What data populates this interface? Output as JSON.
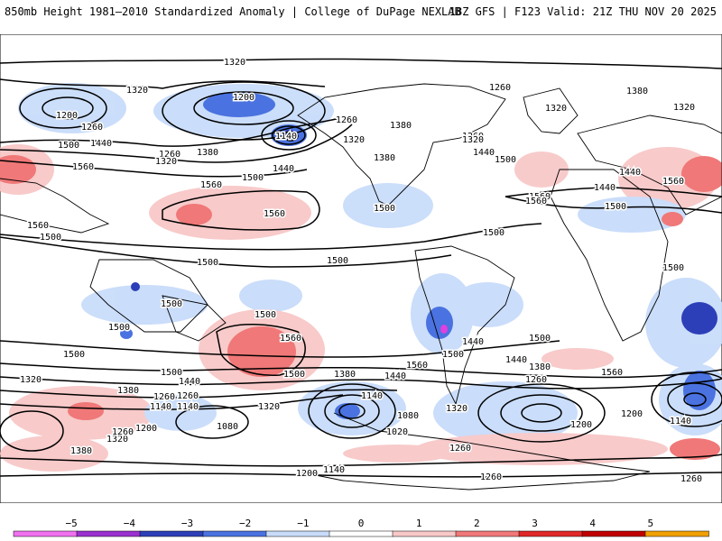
{
  "header": {
    "title_left": "850mb Height 1981–2010 Standardized Anomaly | College of DuPage NEXLAB",
    "title_right": "18Z GFS | F123 Valid: 21Z THU NOV 20 2025"
  },
  "map": {
    "contour_labels": [
      "1320",
      "1320",
      "1260",
      "1200",
      "1200",
      "1260",
      "1140",
      "1380",
      "1320",
      "1260",
      "1260",
      "1380",
      "1320",
      "1260",
      "1380",
      "1320",
      "1500",
      "1440",
      "1560",
      "1320",
      "1380",
      "1440",
      "1500",
      "1560",
      "1320",
      "1440",
      "1500",
      "1560",
      "1440",
      "1560",
      "1560",
      "1500",
      "1560",
      "1500",
      "1440",
      "1500",
      "1500",
      "1500",
      "1560",
      "1500",
      "1500",
      "1500",
      "1500",
      "1500",
      "1560",
      "1500",
      "1440",
      "1500",
      "1560",
      "1440",
      "1500",
      "1500",
      "1500",
      "1440",
      "1380",
      "1560",
      "1320",
      "1380",
      "1440",
      "1260",
      "1140",
      "1200",
      "1320",
      "1320",
      "1380",
      "1080",
      "1140",
      "1020",
      "1080",
      "1260",
      "1260",
      "1140",
      "1200",
      "1200",
      "1140",
      "1320",
      "1380",
      "1260",
      "1260",
      "1200",
      "1140",
      "1260",
      "1260"
    ]
  },
  "colorbar": {
    "ticks": [
      "−5",
      "−4",
      "−3",
      "−2",
      "−1",
      "0",
      "1",
      "2",
      "3",
      "4",
      "5"
    ],
    "colors": [
      "#f070f0",
      "#9b30d0",
      "#2c3fb8",
      "#4a72e0",
      "#c8dcfa",
      "#ffffff",
      "#f8c8c8",
      "#f07878",
      "#e02828",
      "#c00000",
      "#f0a000"
    ]
  }
}
